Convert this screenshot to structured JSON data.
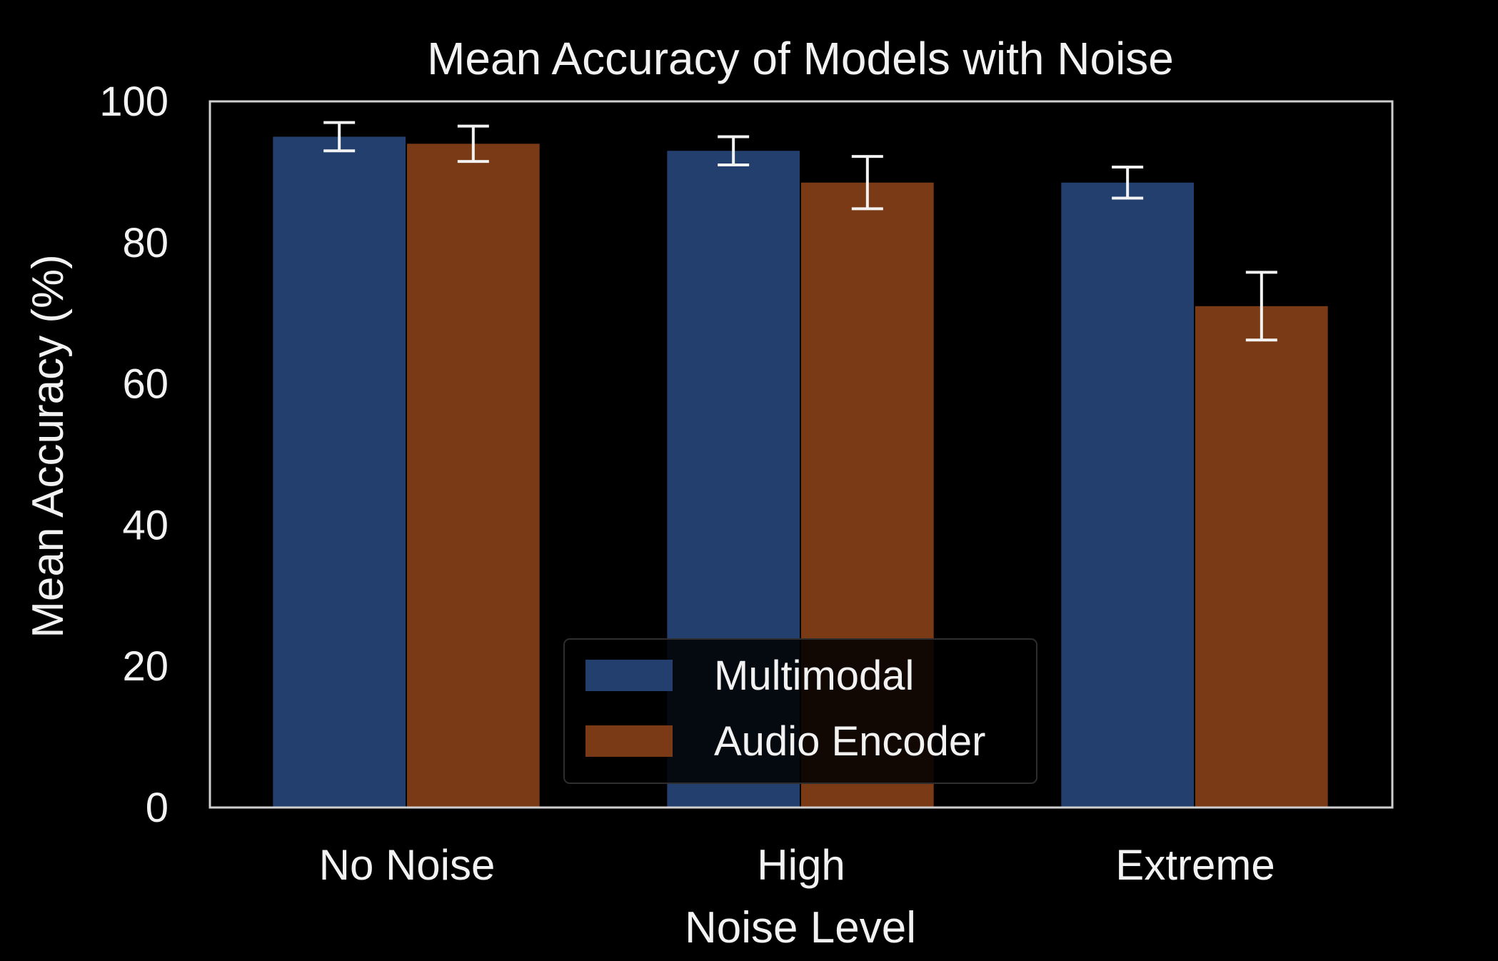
{
  "chart_data": {
    "type": "bar",
    "title": "Mean Accuracy of Models with Noise",
    "xlabel": "Noise Level",
    "ylabel": "Mean Accuracy (%)",
    "categories": [
      "No Noise",
      "High",
      "Extreme"
    ],
    "ylim": [
      0,
      100
    ],
    "yticks": [
      0,
      20,
      40,
      60,
      80,
      100
    ],
    "grid": false,
    "legend_position": "lower-center",
    "series": [
      {
        "name": "Multimodal",
        "color": "#233f6e",
        "values": [
          95,
          93,
          88.5
        ],
        "errors": [
          2,
          2,
          2.2
        ]
      },
      {
        "name": "Audio Encoder",
        "color": "#7a3a15",
        "values": [
          94,
          88.5,
          71
        ],
        "errors": [
          2.5,
          3.7,
          4.8
        ]
      }
    ]
  }
}
